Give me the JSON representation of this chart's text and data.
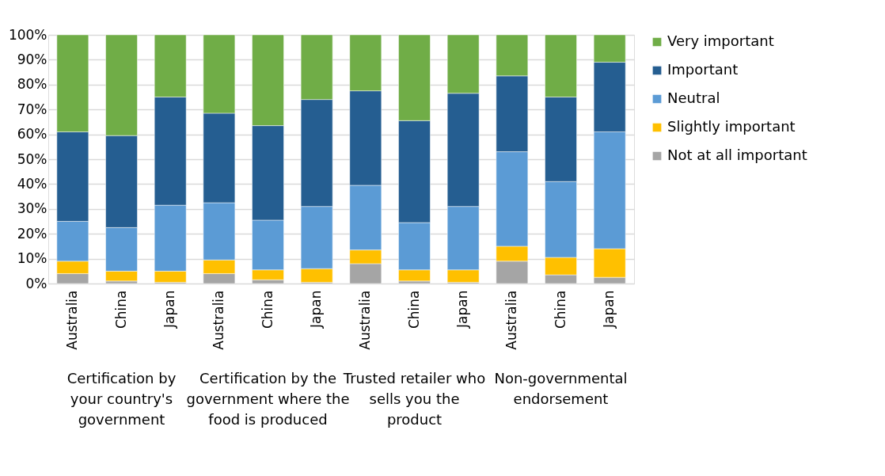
{
  "chart_data": {
    "type": "bar",
    "stacked": true,
    "categories": [
      "Australia",
      "China",
      "Japan",
      "Australia",
      "China",
      "Japan",
      "Australia",
      "China",
      "Japan",
      "Australia",
      "China",
      "Japan"
    ],
    "annotations": [
      "Certification by your country's government",
      "Certification by the government where the food is produced",
      "Trusted retailer who sells you the product",
      "Non-governmental endorsement"
    ],
    "series": [
      {
        "name": "Not at all important",
        "color": "#a5a5a5",
        "values": [
          4,
          1,
          0.5,
          4,
          1.5,
          0.5,
          8,
          1,
          0.5,
          9,
          3.5,
          2.5
        ]
      },
      {
        "name": "Slightly important",
        "color": "#ffc000",
        "values": [
          5,
          4,
          4.5,
          5.5,
          4,
          5.5,
          5.5,
          4.5,
          5,
          6,
          7,
          11.5
        ]
      },
      {
        "name": "Neutral",
        "color": "#5b9bd5",
        "values": [
          16,
          17.5,
          26.5,
          23,
          20,
          25,
          26,
          19,
          25.5,
          38,
          30.5,
          47
        ]
      },
      {
        "name": "Important",
        "color": "#255e91",
        "values": [
          36,
          37,
          43.5,
          36,
          38,
          43,
          38,
          41,
          45.5,
          30.5,
          34,
          28
        ]
      },
      {
        "name": "Very important",
        "color": "#70ad47",
        "values": [
          39,
          40.5,
          25,
          31.5,
          36.5,
          26,
          22.5,
          34.5,
          23.5,
          16.5,
          25,
          11
        ]
      }
    ],
    "ylim": [
      0,
      100
    ],
    "yticks": [
      {
        "value": 0,
        "label": "0%"
      },
      {
        "value": 10,
        "label": "10%"
      },
      {
        "value": 20,
        "label": "20%"
      },
      {
        "value": 30,
        "label": "30%"
      },
      {
        "value": 40,
        "label": "40%"
      },
      {
        "value": 50,
        "label": "50%"
      },
      {
        "value": 60,
        "label": "60%"
      },
      {
        "value": 70,
        "label": "70%"
      },
      {
        "value": 80,
        "label": "80%"
      },
      {
        "value": 90,
        "label": "90%"
      },
      {
        "value": 100,
        "label": "100%"
      }
    ],
    "grid": "y",
    "legend": "right"
  }
}
